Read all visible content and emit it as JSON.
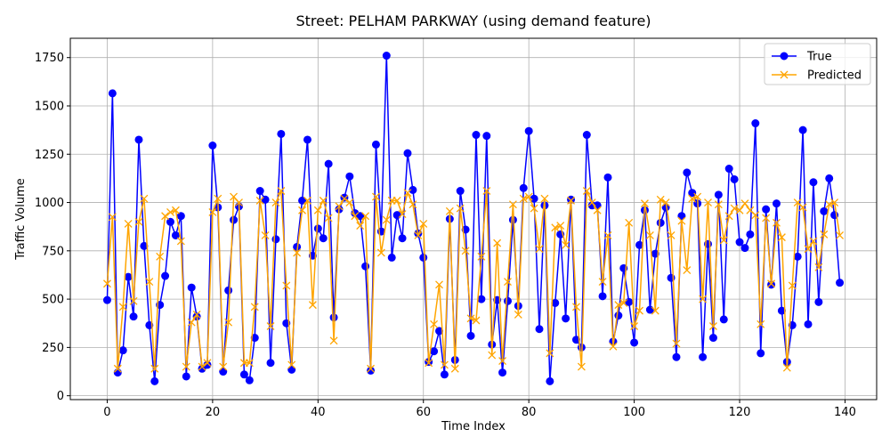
{
  "chart_data": {
    "type": "line",
    "title": "Street: PELHAM PARKWAY (using demand feature)",
    "xlabel": "Time Index",
    "ylabel": "Traffic Volume",
    "xlim": [
      -7,
      146
    ],
    "ylim": [
      -20,
      1850
    ],
    "xticks": [
      0,
      20,
      40,
      60,
      80,
      100,
      120,
      140
    ],
    "yticks": [
      0,
      250,
      500,
      750,
      1000,
      1250,
      1500,
      1750
    ],
    "grid": true,
    "legend_position": "top-right",
    "x": [
      0,
      1,
      2,
      3,
      4,
      5,
      6,
      7,
      8,
      9,
      10,
      11,
      12,
      13,
      14,
      15,
      16,
      17,
      18,
      19,
      20,
      21,
      22,
      23,
      24,
      25,
      26,
      27,
      28,
      29,
      30,
      31,
      32,
      33,
      34,
      35,
      36,
      37,
      38,
      39,
      40,
      41,
      42,
      43,
      44,
      45,
      46,
      47,
      48,
      49,
      50,
      51,
      52,
      53,
      54,
      55,
      56,
      57,
      58,
      59,
      60,
      61,
      62,
      63,
      64,
      65,
      66,
      67,
      68,
      69,
      70,
      71,
      72,
      73,
      74,
      75,
      76,
      77,
      78,
      79,
      80,
      81,
      82,
      83,
      84,
      85,
      86,
      87,
      88,
      89,
      90,
      91,
      92,
      93,
      94,
      95,
      96,
      97,
      98,
      99,
      100,
      101,
      102,
      103,
      104,
      105,
      106,
      107,
      108,
      109,
      110,
      111,
      112,
      113,
      114,
      115,
      116,
      117,
      118,
      119,
      120,
      121,
      122,
      123,
      124,
      125,
      126,
      127,
      128,
      129,
      130,
      131,
      132,
      133,
      134,
      135,
      136,
      137,
      138,
      139
    ],
    "series": [
      {
        "name": "True",
        "color": "#0000ff",
        "marker": "circle",
        "values": [
          495,
          1565,
          120,
          235,
          615,
          410,
          1325,
          775,
          365,
          75,
          470,
          620,
          900,
          830,
          930,
          100,
          560,
          410,
          140,
          160,
          1295,
          975,
          125,
          545,
          910,
          980,
          110,
          80,
          300,
          1060,
          1015,
          170,
          810,
          1355,
          375,
          135,
          770,
          1010,
          1325,
          725,
          865,
          815,
          1200,
          405,
          965,
          1025,
          1135,
          945,
          930,
          670,
          130,
          1300,
          850,
          1760,
          715,
          935,
          815,
          1255,
          1065,
          840,
          715,
          175,
          230,
          335,
          110,
          915,
          185,
          1060,
          860,
          310,
          1350,
          500,
          1345,
          265,
          495,
          120,
          490,
          910,
          465,
          1075,
          1370,
          1020,
          345,
          985,
          75,
          480,
          835,
          400,
          1015,
          290,
          250,
          1350,
          985,
          985,
          515,
          1130,
          280,
          415,
          660,
          485,
          275,
          780,
          960,
          445,
          735,
          895,
          975,
          610,
          200,
          930,
          1155,
          1050,
          995,
          200,
          785,
          300,
          1040,
          395,
          1175,
          1120,
          795,
          765,
          835,
          1410,
          220,
          965,
          575,
          995,
          440,
          175,
          365,
          720,
          1375,
          370,
          1105,
          485,
          955,
          1125,
          935,
          585
        ]
      },
      {
        "name": "Predicted",
        "color": "#ffa500",
        "marker": "x",
        "values": [
          580,
          925,
          140,
          460,
          890,
          490,
          900,
          1020,
          590,
          140,
          720,
          930,
          950,
          960,
          800,
          150,
          380,
          420,
          150,
          170,
          950,
          1020,
          150,
          380,
          1030,
          1000,
          170,
          170,
          460,
          1010,
          830,
          360,
          1000,
          1060,
          570,
          160,
          740,
          960,
          1010,
          470,
          960,
          1010,
          920,
          285,
          980,
          1020,
          1000,
          930,
          880,
          930,
          140,
          1030,
          740,
          910,
          1010,
          1010,
          940,
          1050,
          990,
          830,
          890,
          170,
          370,
          575,
          160,
          955,
          140,
          970,
          750,
          400,
          390,
          720,
          1060,
          210,
          790,
          180,
          590,
          990,
          420,
          1020,
          1030,
          970,
          760,
          1020,
          220,
          870,
          880,
          780,
          1010,
          460,
          150,
          1060,
          1000,
          960,
          590,
          830,
          255,
          470,
          480,
          895,
          360,
          440,
          995,
          830,
          440,
          1015,
          1000,
          830,
          270,
          905,
          650,
          1020,
          1030,
          500,
          1000,
          360,
          990,
          805,
          930,
          970,
          960,
          995,
          960,
          935,
          370,
          920,
          580,
          895,
          820,
          145,
          570,
          1000,
          975,
          760,
          800,
          665,
          835,
          990,
          1000,
          830
        ]
      }
    ]
  }
}
